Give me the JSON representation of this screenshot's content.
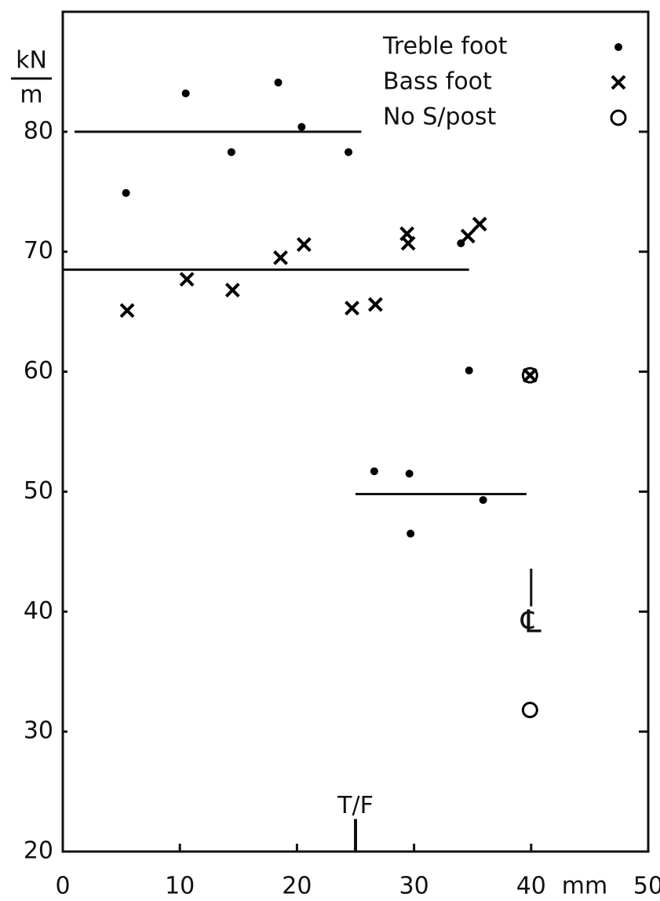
{
  "chart_data": {
    "type": "scatter",
    "y_label": {
      "numerator": "kN",
      "denominator": "m"
    },
    "x_unit": "mm",
    "xlim": [
      0,
      50
    ],
    "xticks": [
      0,
      10,
      20,
      30,
      40,
      50
    ],
    "ylim": [
      20,
      90
    ],
    "yticks": [
      20,
      30,
      40,
      50,
      60,
      70,
      80
    ],
    "legend": "top-right",
    "series": [
      {
        "name": "Treble foot",
        "marker": "dot",
        "color": "#000000",
        "x": [
          5.4,
          10.5,
          14.4,
          18.4,
          20.4,
          24.4,
          26.6,
          29.6,
          29.7,
          34.0,
          34.7,
          35.9
        ],
        "values": [
          74.9,
          83.2,
          78.3,
          84.1,
          80.4,
          78.3,
          51.7,
          51.5,
          46.5,
          70.7,
          60.1,
          49.3
        ]
      },
      {
        "name": "Bass foot",
        "marker": "cross",
        "color": "#000000",
        "x": [
          5.5,
          10.6,
          14.5,
          18.6,
          20.6,
          24.7,
          26.7,
          29.4,
          29.5,
          34.6,
          35.6,
          39.9
        ],
        "values": [
          65.1,
          67.7,
          66.8,
          69.5,
          70.6,
          65.3,
          65.6,
          71.5,
          70.7,
          71.3,
          72.3,
          59.7
        ]
      },
      {
        "name": "No S/post",
        "marker": "circle",
        "color": "#000000",
        "x": [
          39.9,
          39.9
        ],
        "values": [
          59.7,
          31.8
        ]
      }
    ],
    "lines": [
      {
        "y": 80,
        "x": [
          1,
          25.5
        ]
      },
      {
        "y": 68.5,
        "x": [
          0,
          34.7
        ]
      },
      {
        "y": 49.8,
        "x": [
          25,
          39.6
        ]
      }
    ],
    "annotations": [
      {
        "text": "T/F",
        "x": 25,
        "y": 23.5
      },
      {
        "text": "℄",
        "x": 40,
        "y": 39
      }
    ]
  }
}
